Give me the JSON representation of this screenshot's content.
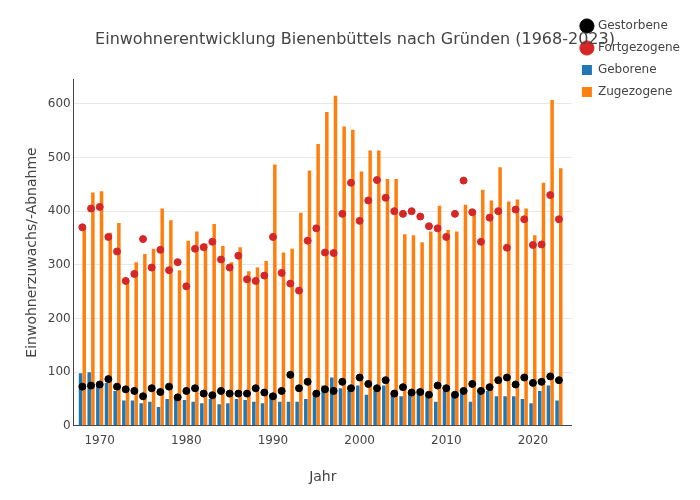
{
  "chart_data": {
    "type": "bar",
    "title": "Einwohnerentwicklung Bienenbüttels nach Gründen (1968-2023)",
    "x_label": "Jahr",
    "y_label": "Einwohnerzuwachs/-Abnahme",
    "x": [
      1968,
      1969,
      1970,
      1971,
      1972,
      1973,
      1974,
      1975,
      1976,
      1977,
      1978,
      1979,
      1980,
      1981,
      1982,
      1983,
      1984,
      1985,
      1986,
      1987,
      1988,
      1989,
      1990,
      1991,
      1992,
      1993,
      1994,
      1995,
      1996,
      1997,
      1998,
      1999,
      2000,
      2001,
      2002,
      2003,
      2004,
      2005,
      2006,
      2007,
      2008,
      2009,
      2010,
      2011,
      2012,
      2013,
      2014,
      2015,
      2016,
      2017,
      2018,
      2019,
      2020,
      2021,
      2022,
      2023
    ],
    "series": [
      {
        "name": "Geborene",
        "type": "bar",
        "color": "#1f77b4",
        "values": [
          98,
          100,
          75,
          80,
          65,
          47,
          47,
          42,
          45,
          35,
          50,
          55,
          48,
          45,
          42,
          50,
          40,
          42,
          50,
          48,
          45,
          42,
          60,
          45,
          45,
          45,
          50,
          60,
          75,
          90,
          70,
          65,
          75,
          58,
          65,
          75,
          60,
          55,
          65,
          68,
          55,
          45,
          65,
          55,
          60,
          45,
          60,
          65,
          55,
          55,
          55,
          50,
          42,
          65,
          75,
          47
        ]
      },
      {
        "name": "Zugezogene",
        "type": "bar",
        "color": "#ff7f0e",
        "values": [
          370,
          435,
          437,
          360,
          378,
          270,
          305,
          320,
          330,
          405,
          383,
          290,
          345,
          362,
          340,
          376,
          335,
          305,
          333,
          288,
          295,
          307,
          487,
          323,
          330,
          397,
          476,
          525,
          585,
          615,
          558,
          552,
          474,
          513,
          513,
          460,
          460,
          357,
          355,
          342,
          362,
          410,
          365,
          362,
          412,
          398,
          440,
          420,
          482,
          418,
          422,
          405,
          355,
          453,
          607,
          480
        ]
      },
      {
        "name": "Gestorbene",
        "type": "scatter",
        "marker": "circle",
        "color": "#000000",
        "values": [
          73,
          75,
          77,
          87,
          73,
          68,
          65,
          55,
          70,
          63,
          73,
          53,
          65,
          70,
          60,
          57,
          65,
          60,
          60,
          60,
          70,
          62,
          55,
          65,
          95,
          70,
          82,
          60,
          68,
          65,
          82,
          70,
          90,
          78,
          70,
          85,
          60,
          72,
          62,
          63,
          58,
          75,
          70,
          58,
          65,
          78,
          65,
          72,
          85,
          90,
          77,
          90,
          80,
          82,
          92,
          85
        ]
      },
      {
        "name": "Fortgezogene",
        "type": "scatter",
        "marker": "circle",
        "color": "#d62728",
        "values": [
          370,
          405,
          408,
          352,
          325,
          270,
          283,
          348,
          295,
          328,
          290,
          305,
          260,
          330,
          333,
          343,
          310,
          295,
          317,
          273,
          270,
          280,
          352,
          285,
          265,
          252,
          345,
          368,
          323,
          322,
          395,
          453,
          382,
          420,
          458,
          425,
          400,
          395,
          400,
          390,
          372,
          368,
          352,
          395,
          457,
          398,
          343,
          388,
          400,
          332,
          403,
          385,
          337,
          338,
          430,
          385
        ]
      }
    ],
    "xlim": [
      1967,
      2024.5
    ],
    "xticks": [
      1970,
      1980,
      1990,
      2000,
      2010,
      2020
    ],
    "ylim": [
      0,
      646
    ],
    "yticks": [
      0,
      100,
      200,
      300,
      400,
      500,
      600
    ],
    "grid": true,
    "legend": "right"
  }
}
